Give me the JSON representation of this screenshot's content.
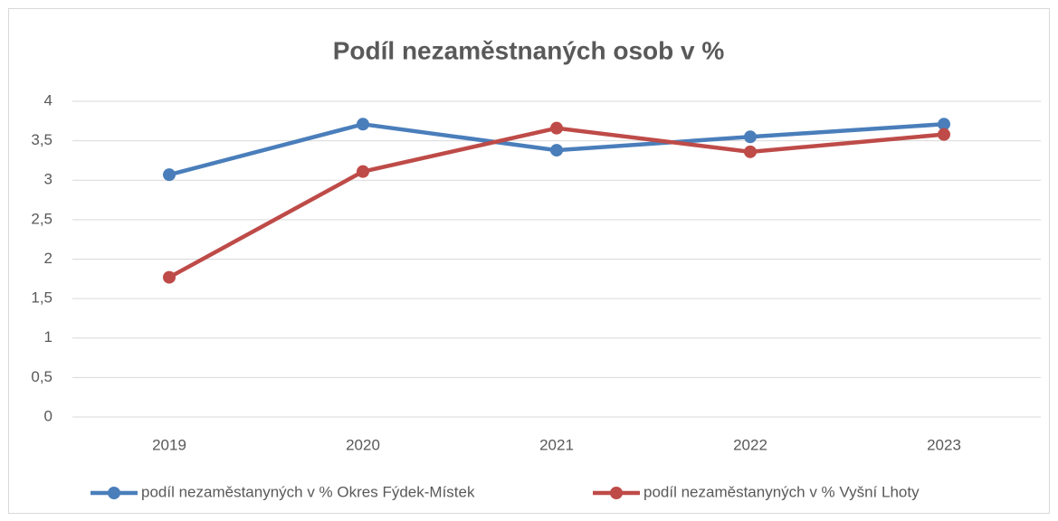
{
  "chart_data": {
    "type": "line",
    "title": "Podíl nezaměstnaných osob v %",
    "categories": [
      "2019",
      "2020",
      "2021",
      "2022",
      "2023"
    ],
    "series": [
      {
        "name": "podíl nezaměstanyných v % Okres Fýdek-Místek",
        "color": "#4a7ebb",
        "values": [
          3.07,
          3.71,
          3.38,
          3.55,
          3.71
        ]
      },
      {
        "name": "podíl nezaměstanyných v % Vyšní Lhoty",
        "color": "#be4b48",
        "values": [
          1.77,
          3.11,
          3.66,
          3.36,
          3.58
        ]
      }
    ],
    "ylim": [
      0,
      4
    ],
    "yticks": [
      0,
      {
        "value": 0.5,
        "label": "0,5"
      },
      1,
      {
        "value": 1.5,
        "label": "1,5"
      },
      2,
      {
        "value": 2.5,
        "label": "2,5"
      },
      3,
      {
        "value": 3.5,
        "label": "3,5"
      },
      4
    ],
    "grid": true,
    "legend": "bottom"
  }
}
